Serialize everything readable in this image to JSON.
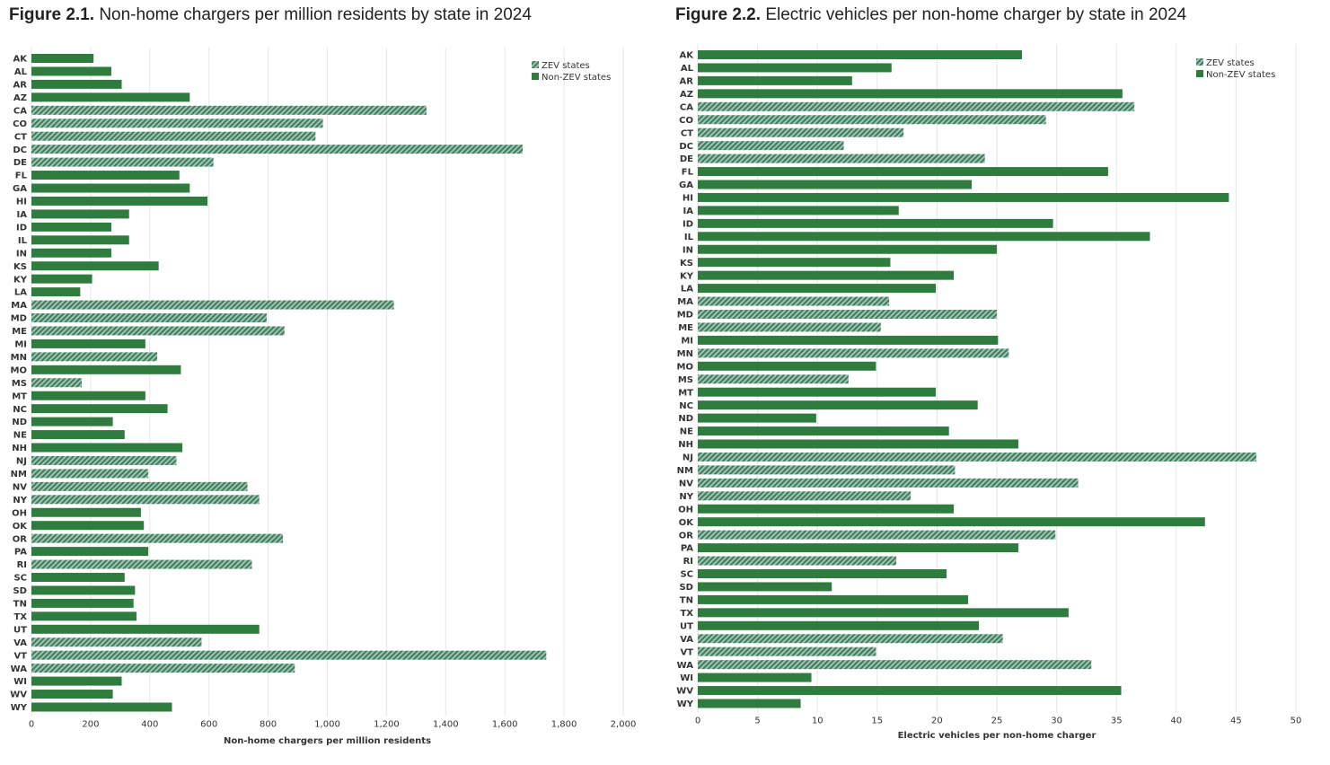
{
  "colors": {
    "non_zev": "#2e7d3e",
    "zev_stripe_a": "#3f7f62",
    "zev_stripe_b": "#a8c8b4",
    "grid": "#e6e6e6",
    "axis_text": "#333333"
  },
  "chart_data": [
    {
      "type": "bar",
      "orientation": "horizontal",
      "figure_number": "Figure 2.1.",
      "title": "Non-home chargers per million residents by state in 2024",
      "xlabel": "Non-home chargers per million residents",
      "ylabel": "",
      "xlim": [
        0,
        2000
      ],
      "xticks": [
        0,
        200,
        400,
        600,
        800,
        1000,
        1200,
        1400,
        1600,
        1800,
        2000
      ],
      "xtick_labels": [
        "0",
        "200",
        "400",
        "600",
        "800",
        "1,000",
        "1,200",
        "1,400",
        "1,600",
        "1,800",
        "2,000"
      ],
      "grid": "vertical",
      "legend": {
        "placement": "top-right",
        "entries": [
          {
            "label": "ZEV states",
            "pattern": "hatched"
          },
          {
            "label": "Non-ZEV states",
            "pattern": "solid"
          }
        ]
      },
      "categories": [
        "AK",
        "AL",
        "AR",
        "AZ",
        "CA",
        "CO",
        "CT",
        "DC",
        "DE",
        "FL",
        "GA",
        "HI",
        "IA",
        "ID",
        "IL",
        "IN",
        "KS",
        "KY",
        "LA",
        "MA",
        "MD",
        "ME",
        "MI",
        "MN",
        "MO",
        "MS",
        "MT",
        "NC",
        "ND",
        "NE",
        "NH",
        "NJ",
        "NM",
        "NV",
        "NY",
        "OH",
        "OK",
        "OR",
        "PA",
        "RI",
        "SC",
        "SD",
        "TN",
        "TX",
        "UT",
        "VA",
        "VT",
        "WA",
        "WI",
        "WV",
        "WY"
      ],
      "values": [
        210,
        270,
        305,
        535,
        1335,
        985,
        960,
        1660,
        615,
        500,
        535,
        595,
        330,
        270,
        330,
        270,
        430,
        205,
        165,
        1225,
        795,
        855,
        385,
        425,
        505,
        170,
        385,
        460,
        275,
        315,
        510,
        490,
        395,
        730,
        770,
        370,
        380,
        850,
        395,
        745,
        315,
        350,
        345,
        355,
        770,
        575,
        1740,
        890,
        305,
        275,
        475
      ],
      "zev": [
        false,
        false,
        false,
        false,
        true,
        true,
        true,
        true,
        true,
        false,
        false,
        false,
        false,
        false,
        false,
        false,
        false,
        false,
        false,
        true,
        true,
        true,
        false,
        true,
        false,
        true,
        false,
        false,
        false,
        false,
        false,
        true,
        true,
        true,
        true,
        false,
        false,
        true,
        false,
        true,
        false,
        false,
        false,
        false,
        false,
        true,
        true,
        true,
        false,
        false,
        false
      ]
    },
    {
      "type": "bar",
      "orientation": "horizontal",
      "figure_number": "Figure 2.2.",
      "title": "Electric vehicles per non-home charger by state in 2024",
      "xlabel": "Electric vehicles per non-home charger",
      "ylabel": "",
      "xlim": [
        0,
        50
      ],
      "xticks": [
        0,
        5,
        10,
        15,
        20,
        25,
        30,
        35,
        40,
        45,
        50
      ],
      "xtick_labels": [
        "0",
        "5",
        "10",
        "15",
        "20",
        "25",
        "30",
        "35",
        "40",
        "45",
        "50"
      ],
      "grid": "vertical",
      "legend": {
        "placement": "top-right",
        "entries": [
          {
            "label": "ZEV states",
            "pattern": "hatched"
          },
          {
            "label": "Non-ZEV states",
            "pattern": "solid"
          }
        ]
      },
      "categories": [
        "AK",
        "AL",
        "AR",
        "AZ",
        "CA",
        "CO",
        "CT",
        "DC",
        "DE",
        "FL",
        "GA",
        "HI",
        "IA",
        "ID",
        "IL",
        "IN",
        "KS",
        "KY",
        "LA",
        "MA",
        "MD",
        "ME",
        "MI",
        "MN",
        "MO",
        "MS",
        "MT",
        "NC",
        "ND",
        "NE",
        "NH",
        "NJ",
        "NM",
        "NV",
        "NY",
        "OH",
        "OK",
        "OR",
        "PA",
        "RI",
        "SC",
        "SD",
        "TN",
        "TX",
        "UT",
        "VA",
        "VT",
        "WA",
        "WI",
        "WV",
        "WY"
      ],
      "values": [
        27.1,
        16.2,
        12.9,
        35.5,
        36.5,
        29.1,
        17.2,
        12.2,
        24,
        34.3,
        22.9,
        44.4,
        16.8,
        29.7,
        37.8,
        25,
        16.1,
        21.4,
        19.9,
        16,
        25,
        15.3,
        25.1,
        26,
        14.9,
        12.6,
        19.9,
        23.4,
        9.9,
        21,
        26.8,
        46.7,
        21.5,
        31.8,
        17.8,
        21.4,
        42.4,
        29.9,
        26.8,
        16.6,
        20.8,
        11.2,
        22.6,
        31,
        23.5,
        25.5,
        14.9,
        32.9,
        9.5,
        35.4,
        8.6
      ],
      "zev": [
        false,
        false,
        false,
        false,
        true,
        true,
        true,
        true,
        true,
        false,
        false,
        false,
        false,
        false,
        false,
        false,
        false,
        false,
        false,
        true,
        true,
        true,
        false,
        true,
        false,
        true,
        false,
        false,
        false,
        false,
        false,
        true,
        true,
        true,
        true,
        false,
        false,
        true,
        false,
        true,
        false,
        false,
        false,
        false,
        false,
        true,
        true,
        true,
        false,
        false,
        false
      ]
    }
  ]
}
